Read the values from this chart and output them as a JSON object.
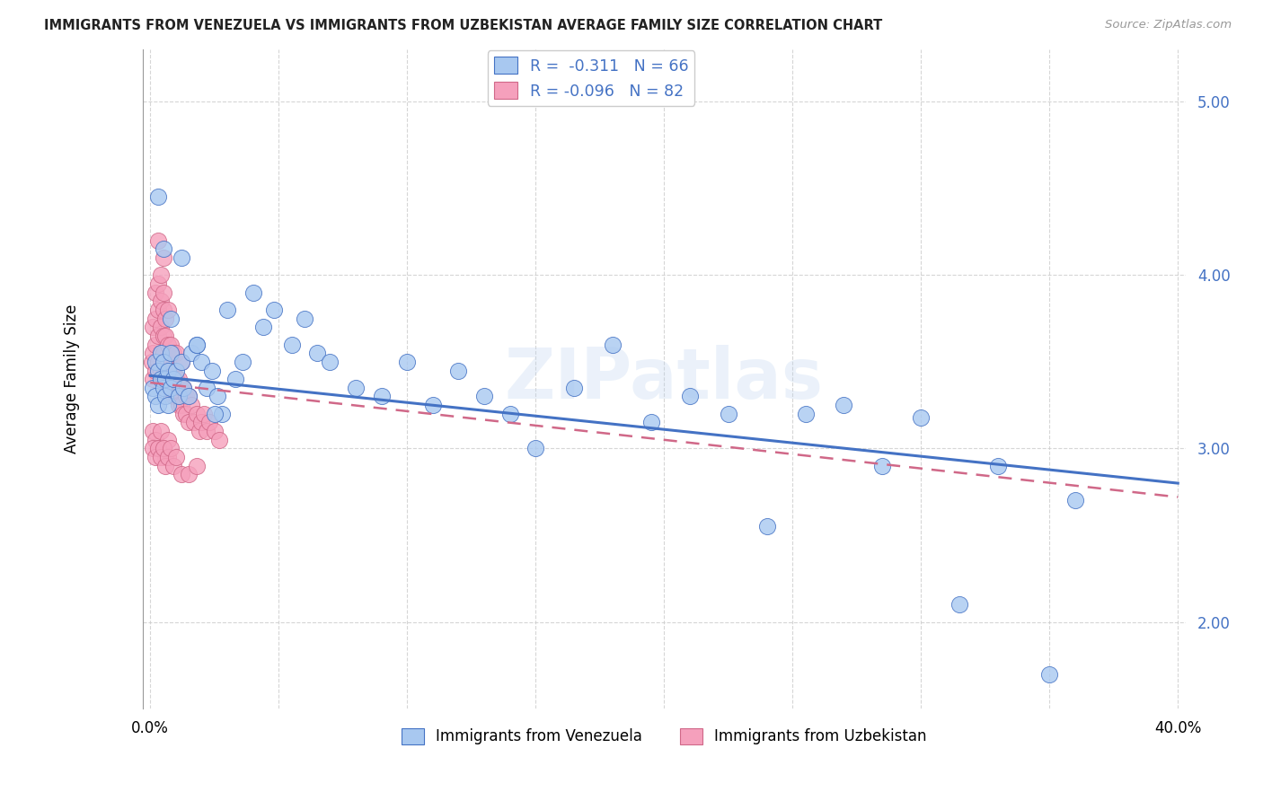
{
  "title": "IMMIGRANTS FROM VENEZUELA VS IMMIGRANTS FROM UZBEKISTAN AVERAGE FAMILY SIZE CORRELATION CHART",
  "source": "Source: ZipAtlas.com",
  "ylabel": "Average Family Size",
  "xlim": [
    -0.003,
    0.403
  ],
  "ylim": [
    1.5,
    5.3
  ],
  "yticks": [
    2.0,
    3.0,
    4.0,
    5.0
  ],
  "xtick_vals": [
    0.0,
    0.05,
    0.1,
    0.15,
    0.2,
    0.25,
    0.3,
    0.35,
    0.4
  ],
  "legend_label1": "Immigrants from Venezuela",
  "legend_label2": "Immigrants from Uzbekistan",
  "legend_R1": "R =  -0.311",
  "legend_N1": "N = 66",
  "legend_R2": "R = -0.096",
  "legend_N2": "N = 82",
  "color_venezuela": "#a8c8f0",
  "color_uzbekistan": "#f5a0bc",
  "line_color_venezuela": "#4472c4",
  "line_color_uzbekistan": "#d06888",
  "watermark": "ZIPatlas",
  "venezuela_x": [
    0.001,
    0.002,
    0.002,
    0.003,
    0.003,
    0.004,
    0.004,
    0.005,
    0.005,
    0.006,
    0.006,
    0.007,
    0.007,
    0.008,
    0.008,
    0.009,
    0.01,
    0.011,
    0.012,
    0.013,
    0.015,
    0.016,
    0.018,
    0.02,
    0.022,
    0.024,
    0.026,
    0.028,
    0.03,
    0.033,
    0.036,
    0.04,
    0.044,
    0.048,
    0.055,
    0.06,
    0.065,
    0.07,
    0.08,
    0.09,
    0.1,
    0.11,
    0.12,
    0.13,
    0.14,
    0.15,
    0.165,
    0.18,
    0.195,
    0.21,
    0.225,
    0.24,
    0.255,
    0.27,
    0.285,
    0.3,
    0.315,
    0.33,
    0.35,
    0.36,
    0.003,
    0.005,
    0.008,
    0.012,
    0.018,
    0.025
  ],
  "venezuela_y": [
    3.35,
    3.5,
    3.3,
    3.45,
    3.25,
    3.4,
    3.55,
    3.35,
    3.5,
    3.4,
    3.3,
    3.45,
    3.25,
    3.55,
    3.35,
    3.4,
    3.45,
    3.3,
    3.5,
    3.35,
    3.3,
    3.55,
    3.6,
    3.5,
    3.35,
    3.45,
    3.3,
    3.2,
    3.8,
    3.4,
    3.5,
    3.9,
    3.7,
    3.8,
    3.6,
    3.75,
    3.55,
    3.5,
    3.35,
    3.3,
    3.5,
    3.25,
    3.45,
    3.3,
    3.2,
    3.0,
    3.35,
    3.6,
    3.15,
    3.3,
    3.2,
    2.55,
    3.2,
    3.25,
    2.9,
    3.18,
    2.1,
    2.9,
    1.7,
    2.7,
    4.45,
    4.15,
    3.75,
    4.1,
    3.6,
    3.2
  ],
  "uzbekistan_x": [
    0.0005,
    0.001,
    0.001,
    0.001,
    0.002,
    0.002,
    0.002,
    0.002,
    0.003,
    0.003,
    0.003,
    0.003,
    0.004,
    0.004,
    0.004,
    0.004,
    0.004,
    0.005,
    0.005,
    0.005,
    0.005,
    0.005,
    0.006,
    0.006,
    0.006,
    0.006,
    0.007,
    0.007,
    0.007,
    0.007,
    0.008,
    0.008,
    0.008,
    0.009,
    0.009,
    0.009,
    0.01,
    0.01,
    0.01,
    0.011,
    0.011,
    0.012,
    0.012,
    0.012,
    0.013,
    0.013,
    0.014,
    0.014,
    0.015,
    0.015,
    0.016,
    0.017,
    0.018,
    0.019,
    0.02,
    0.021,
    0.022,
    0.023,
    0.025,
    0.027,
    0.001,
    0.002,
    0.003,
    0.004,
    0.005,
    0.006,
    0.007,
    0.001,
    0.002,
    0.003,
    0.004,
    0.005,
    0.006,
    0.007,
    0.008,
    0.009,
    0.01,
    0.012,
    0.015,
    0.018,
    0.003,
    0.005
  ],
  "uzbekistan_y": [
    3.5,
    3.4,
    3.55,
    3.7,
    3.45,
    3.6,
    3.75,
    3.9,
    3.5,
    3.65,
    3.8,
    3.95,
    3.45,
    3.55,
    3.7,
    3.85,
    4.0,
    3.4,
    3.55,
    3.65,
    3.8,
    3.9,
    3.35,
    3.5,
    3.65,
    3.75,
    3.35,
    3.5,
    3.6,
    3.8,
    3.35,
    3.45,
    3.6,
    3.3,
    3.45,
    3.55,
    3.3,
    3.4,
    3.55,
    3.25,
    3.4,
    3.25,
    3.35,
    3.5,
    3.2,
    3.35,
    3.2,
    3.3,
    3.15,
    3.3,
    3.25,
    3.15,
    3.2,
    3.1,
    3.15,
    3.2,
    3.1,
    3.15,
    3.1,
    3.05,
    3.1,
    3.05,
    3.0,
    3.1,
    3.0,
    2.95,
    3.05,
    3.0,
    2.95,
    3.0,
    2.95,
    3.0,
    2.9,
    2.95,
    3.0,
    2.9,
    2.95,
    2.85,
    2.85,
    2.9,
    4.2,
    4.1
  ],
  "venezuela_line": [
    0.0,
    0.4
  ],
  "venezuela_line_y": [
    3.42,
    2.8
  ],
  "uzbekistan_line": [
    0.0,
    0.4
  ],
  "uzbekistan_line_y": [
    3.38,
    2.72
  ]
}
